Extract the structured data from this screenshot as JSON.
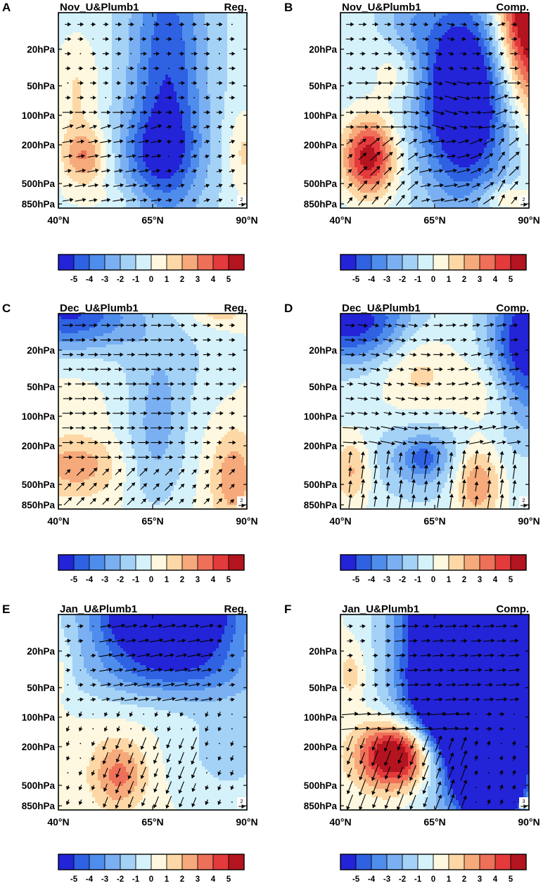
{
  "figure": {
    "colorbar_levels": [
      -5,
      -4,
      -3,
      -2,
      -1,
      0,
      1,
      2,
      3,
      4,
      5
    ],
    "colorbar_tick_labels": [
      "-5",
      "-4",
      "-3",
      "-2",
      "-1",
      "0",
      "1",
      "2",
      "3",
      "4",
      "5"
    ],
    "colorbar_colors": [
      "#2323d7",
      "#2f61e3",
      "#4f8ded",
      "#7ab0f2",
      "#a4d2f6",
      "#d5f1fa",
      "#fdf8df",
      "#fdd8a6",
      "#f6a97a",
      "#ee7059",
      "#e33a3b",
      "#b3141f"
    ],
    "y_tick_labels": [
      "20hPa",
      "50hPa",
      "100hPa",
      "200hPa",
      "500hPa",
      "850hPa"
    ],
    "x_tick_labels": [
      "40°N",
      "65°N",
      "90°N"
    ]
  },
  "chart_data": [
    {
      "type": "contour-vector",
      "letter": "A",
      "title": "Nov_U&Plumb1",
      "tag": "Reg.",
      "ref_vector": "2",
      "x": {
        "range": [
          40,
          90
        ],
        "ticks": [
          40,
          65,
          90
        ],
        "unit": "°N"
      },
      "y": {
        "levels_hPa": [
          20,
          50,
          100,
          200,
          500,
          850
        ],
        "log_scale": true
      },
      "features": [
        {
          "lat": 48,
          "p": 380,
          "value": 2.5,
          "label": "local max"
        },
        {
          "lat": 66,
          "p": 60,
          "value": -3.5,
          "label": "upper minimum"
        },
        {
          "lat": 86,
          "p": 400,
          "value": 1.5,
          "label": "weak max"
        }
      ]
    },
    {
      "type": "contour-vector",
      "letter": "B",
      "title": "Nov_U&Plumb1",
      "tag": "Comp.",
      "ref_vector": "2",
      "x": {
        "range": [
          40,
          90
        ],
        "ticks": [
          40,
          65,
          90
        ],
        "unit": "°N"
      },
      "y": {
        "levels_hPa": [
          20,
          50,
          100,
          200,
          500,
          850
        ],
        "log_scale": true
      },
      "features": [
        {
          "lat": 46,
          "p": 350,
          "value": 4.5,
          "label": "low-latitude max"
        },
        {
          "lat": 66,
          "p": 150,
          "value": -6,
          "label": "central minimum"
        },
        {
          "lat": 89,
          "p": 12,
          "value": 6,
          "label": "polar max"
        }
      ]
    },
    {
      "type": "contour-vector",
      "letter": "C",
      "title": "Dec_U&Plumb1",
      "tag": "Reg.",
      "ref_vector": "2",
      "x": {
        "range": [
          40,
          90
        ],
        "ticks": [
          40,
          65,
          90
        ],
        "unit": "°N"
      },
      "y": {
        "levels_hPa": [
          20,
          50,
          100,
          200,
          500,
          850
        ],
        "log_scale": true
      },
      "features": [
        {
          "lat": 46,
          "p": 12,
          "value": -3.5,
          "label": "upper minimum"
        },
        {
          "lat": 66,
          "p": 300,
          "value": -2,
          "label": "mid minimum"
        },
        {
          "lat": 86,
          "p": 450,
          "value": 1.5,
          "label": "weak max"
        }
      ]
    },
    {
      "type": "contour-vector",
      "letter": "D",
      "title": "Dec_U&Plumb1",
      "tag": "Comp.",
      "ref_vector": "2",
      "x": {
        "range": [
          40,
          90
        ],
        "ticks": [
          40,
          65,
          90
        ],
        "unit": "°N"
      },
      "y": {
        "levels_hPa": [
          20,
          50,
          100,
          200,
          500,
          850
        ],
        "log_scale": true
      },
      "features": [
        {
          "lat": 62,
          "p": 300,
          "value": -3.5,
          "label": "central minimum"
        },
        {
          "lat": 89,
          "p": 20,
          "value": -4.5,
          "label": "polar minimum"
        },
        {
          "lat": 80,
          "p": 500,
          "value": 2.5,
          "label": "lower max"
        }
      ]
    },
    {
      "type": "contour-vector",
      "letter": "E",
      "title": "Jan_U&Plumb1",
      "tag": "Reg.",
      "ref_vector": "2",
      "x": {
        "range": [
          40,
          90
        ],
        "ticks": [
          40,
          65,
          90
        ],
        "unit": "°N"
      },
      "y": {
        "levels_hPa": [
          20,
          50,
          100,
          200,
          500,
          850
        ],
        "log_scale": true
      },
      "features": [
        {
          "lat": 66,
          "p": 15,
          "value": -6,
          "label": "upper minimum"
        },
        {
          "lat": 53,
          "p": 350,
          "value": 2,
          "label": "lower max"
        }
      ]
    },
    {
      "type": "contour-vector",
      "letter": "F",
      "title": "Jan_U&Plumb1",
      "tag": "Comp.",
      "ref_vector": "3",
      "x": {
        "range": [
          40,
          90
        ],
        "ticks": [
          40,
          65,
          90
        ],
        "unit": "°N"
      },
      "y": {
        "levels_hPa": [
          20,
          50,
          100,
          200,
          500,
          850
        ],
        "log_scale": true
      },
      "features": [
        {
          "lat": 70,
          "p": 40,
          "value": -7,
          "label": "upper minimum"
        },
        {
          "lat": 78,
          "p": 600,
          "value": -6,
          "label": "lower minimum"
        },
        {
          "lat": 54,
          "p": 350,
          "value": 5.5,
          "label": "lower max"
        }
      ]
    }
  ]
}
